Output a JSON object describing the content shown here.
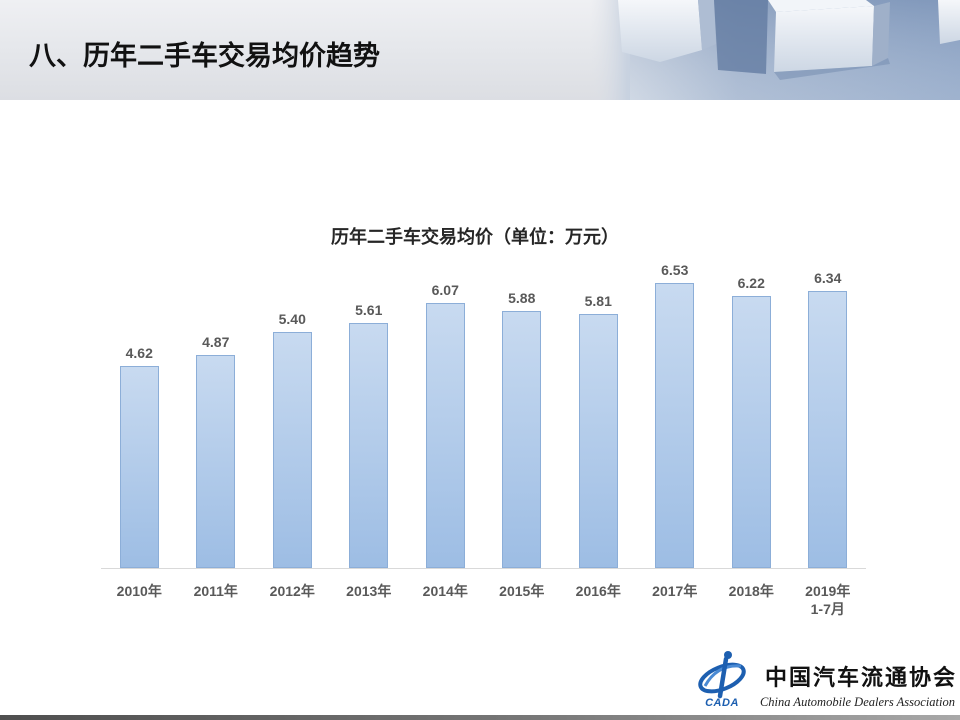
{
  "slide": {
    "title": "八、历年二手车交易均价趋势"
  },
  "chart_data": {
    "type": "bar",
    "title": "历年二手车交易均价（单位：万元）",
    "categories": [
      "2010年",
      "2011年",
      "2012年",
      "2013年",
      "2014年",
      "2015年",
      "2016年",
      "2017年",
      "2018年",
      "2019年\n1-7月"
    ],
    "values": [
      4.62,
      4.87,
      5.4,
      5.61,
      6.07,
      5.88,
      5.81,
      6.53,
      6.22,
      6.34
    ],
    "value_labels": [
      "4.62",
      "4.87",
      "5.40",
      "5.61",
      "6.07",
      "5.88",
      "5.81",
      "6.53",
      "6.22",
      "6.34"
    ],
    "xlabel": "",
    "ylabel": "",
    "ylim": [
      0,
      7
    ],
    "grid": false
  },
  "colors": {
    "bar_top": "#c8daf0",
    "bar_bottom": "#9dbde4",
    "bar_border": "#8caed8",
    "label": "#595959",
    "axis": "#d9d9d9",
    "logo_blue": "#1d5fb0"
  },
  "logo": {
    "emblem_text": "CADA",
    "name_cn": "中国汽车流通协会",
    "name_en": "China Automobile Dealers Association"
  }
}
